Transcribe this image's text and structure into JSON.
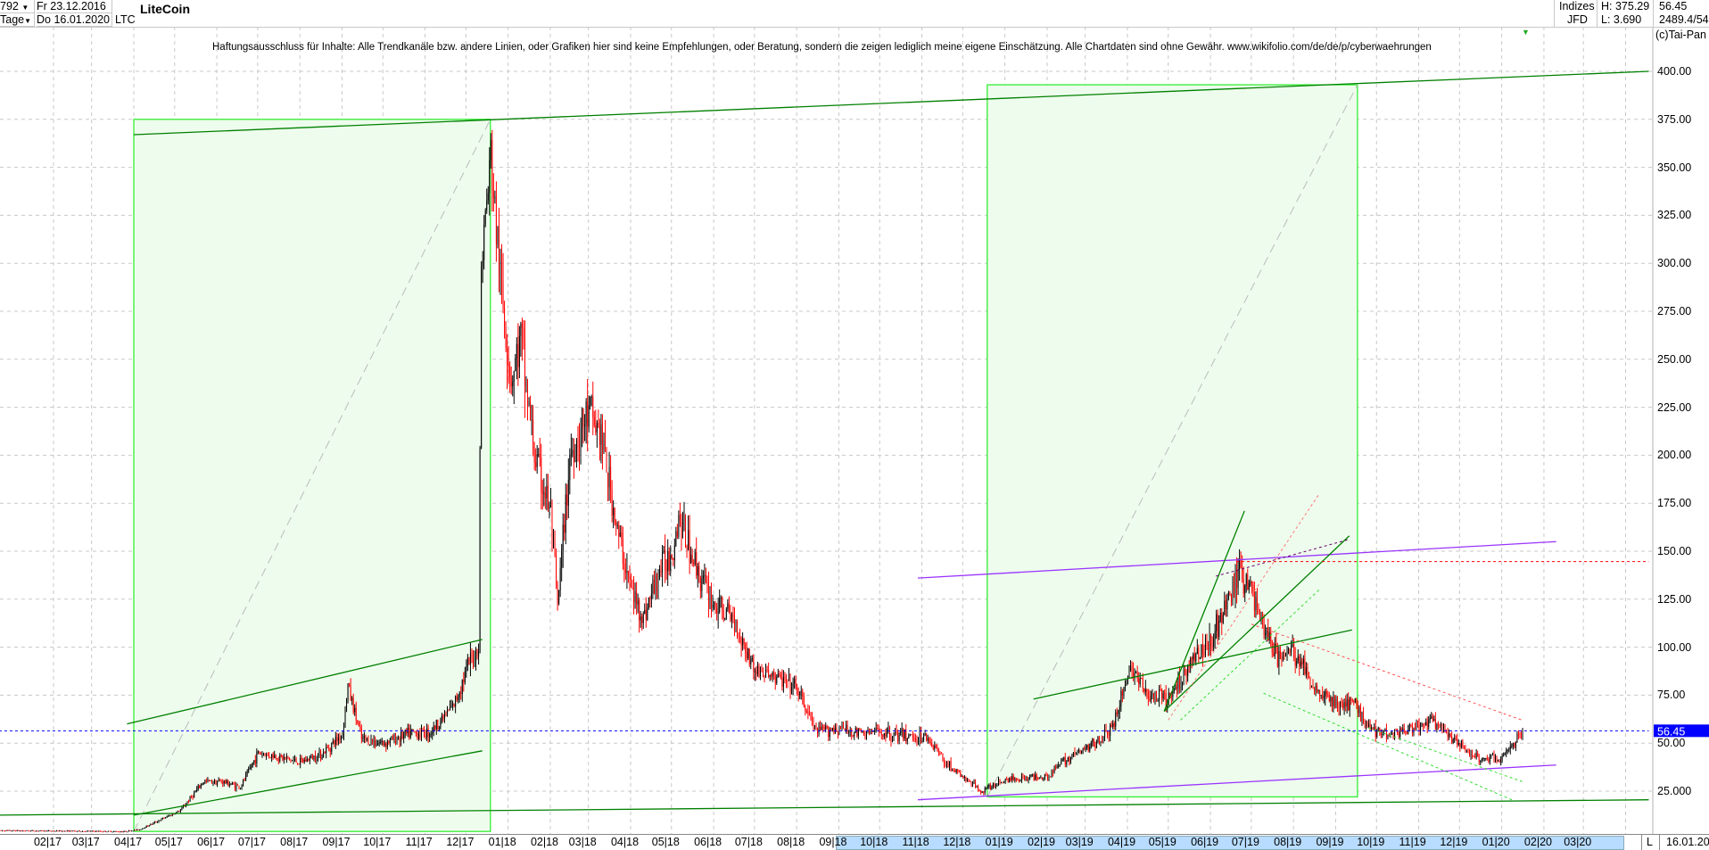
{
  "header": {
    "bar_count": "792",
    "period": "Tage",
    "start_date": "Fr 23.12.2016",
    "end_date": "Do 16.01.2020",
    "symbol": "LTC",
    "title": "LiteCoin",
    "category": "Indizes",
    "source": "JFD",
    "high": "H: 375.29",
    "low": "L: 3.690",
    "last": "56.45",
    "extra": "2489.4/54",
    "copyright": "(c)Tai-Pan"
  },
  "disclaimer": "Haftungsausschluss für Inhalte: Alle Trendkanäle bzw. andere Linien, oder Grafiken hier sind keine Empfehlungen, oder Beratung, sondern die zeigen lediglich meine eigene Einschätzung. Alle Chartdaten sind ohne Gewähr.  www.wikifolio.com/de/de/p/cyberwaehrungen",
  "footer": {
    "scale_mode": "L",
    "last_date": "16.01.20"
  },
  "colors": {
    "up": "#000000",
    "down": "#ff0000",
    "box_fill": "#eefced",
    "box_border": "#33ee33",
    "trend": "#008000",
    "purple": "#9933ff",
    "price_marker": "#0000ff"
  },
  "chart_data": {
    "type": "candlestick",
    "title": "LiteCoin",
    "ylim": [
      0,
      410
    ],
    "y_ticks": [
      "25.000",
      "50.00",
      "75.00",
      "100.00",
      "125.00",
      "150.00",
      "175.00",
      "200.00",
      "225.00",
      "250.00",
      "275.00",
      "300.00",
      "325.00",
      "350.00",
      "375.00",
      "400.00"
    ],
    "x_ticks": [
      "02|17",
      "03|17",
      "04|17",
      "05|17",
      "06|17",
      "07|17",
      "08|17",
      "09|17",
      "10|17",
      "11|17",
      "12|17",
      "01|18",
      "02|18",
      "03|18",
      "04|18",
      "05|18",
      "06|18",
      "07|18",
      "08|18",
      "09|18",
      "10|18",
      "11|18",
      "12|18",
      "01|19",
      "02|19",
      "03|19",
      "04|19",
      "05|19",
      "06|19",
      "07|19",
      "08|19",
      "09|19",
      "10|19",
      "11|19",
      "12|19",
      "01|20",
      "02|20",
      "03|20"
    ],
    "current_price": "56.45",
    "close_path": [
      [
        "2016-12-23",
        4.5
      ],
      [
        "2017-03-25",
        4
      ],
      [
        "2017-04-05",
        5
      ],
      [
        "2017-04-20",
        10
      ],
      [
        "2017-05-05",
        15
      ],
      [
        "2017-05-22",
        30
      ],
      [
        "2017-06-05",
        30
      ],
      [
        "2017-06-18",
        27
      ],
      [
        "2017-07-01",
        45
      ],
      [
        "2017-07-15",
        43
      ],
      [
        "2017-08-01",
        40
      ],
      [
        "2017-08-18",
        45
      ],
      [
        "2017-09-01",
        55
      ],
      [
        "2017-09-05",
        80
      ],
      [
        "2017-09-15",
        52
      ],
      [
        "2017-10-01",
        50
      ],
      [
        "2017-10-20",
        55
      ],
      [
        "2017-11-05",
        56
      ],
      [
        "2017-11-22",
        70
      ],
      [
        "2017-12-02",
        90
      ],
      [
        "2017-12-10",
        100
      ],
      [
        "2017-12-12",
        300
      ],
      [
        "2017-12-19",
        355
      ],
      [
        "2017-12-26",
        290
      ],
      [
        "2018-01-03",
        240
      ],
      [
        "2018-01-10",
        260
      ],
      [
        "2018-01-20",
        200
      ],
      [
        "2018-02-01",
        170
      ],
      [
        "2018-02-06",
        120
      ],
      [
        "2018-02-15",
        200
      ],
      [
        "2018-03-01",
        222
      ],
      [
        "2018-03-10",
        210
      ],
      [
        "2018-03-22",
        160
      ],
      [
        "2018-04-01",
        130
      ],
      [
        "2018-04-10",
        115
      ],
      [
        "2018-04-22",
        140
      ],
      [
        "2018-05-01",
        150
      ],
      [
        "2018-05-06",
        168
      ],
      [
        "2018-05-20",
        140
      ],
      [
        "2018-06-01",
        122
      ],
      [
        "2018-06-15",
        115
      ],
      [
        "2018-07-01",
        88
      ],
      [
        "2018-07-15",
        85
      ],
      [
        "2018-08-01",
        78
      ],
      [
        "2018-08-15",
        56
      ],
      [
        "2018-09-01",
        58
      ],
      [
        "2018-09-15",
        55
      ],
      [
        "2018-10-01",
        56
      ],
      [
        "2018-10-15",
        54
      ],
      [
        "2018-11-05",
        53
      ],
      [
        "2018-11-18",
        40
      ],
      [
        "2018-12-01",
        32
      ],
      [
        "2018-12-15",
        25
      ],
      [
        "2019-01-01",
        31
      ],
      [
        "2019-01-15",
        32
      ],
      [
        "2019-02-01",
        33
      ],
      [
        "2019-02-15",
        42
      ],
      [
        "2019-03-01",
        47
      ],
      [
        "2019-03-20",
        57
      ],
      [
        "2019-04-03",
        90
      ],
      [
        "2019-04-15",
        75
      ],
      [
        "2019-05-01",
        72
      ],
      [
        "2019-05-15",
        90
      ],
      [
        "2019-06-01",
        105
      ],
      [
        "2019-06-15",
        125
      ],
      [
        "2019-06-22",
        140
      ],
      [
        "2019-07-01",
        130
      ],
      [
        "2019-07-10",
        110
      ],
      [
        "2019-07-20",
        95
      ],
      [
        "2019-08-01",
        98
      ],
      [
        "2019-08-15",
        80
      ],
      [
        "2019-09-01",
        70
      ],
      [
        "2019-09-15",
        70
      ],
      [
        "2019-09-25",
        58
      ],
      [
        "2019-10-10",
        55
      ],
      [
        "2019-11-01",
        58
      ],
      [
        "2019-11-10",
        62
      ],
      [
        "2019-11-25",
        52
      ],
      [
        "2019-12-15",
        42
      ],
      [
        "2020-01-01",
        42
      ],
      [
        "2020-01-10",
        50
      ],
      [
        "2020-01-16",
        56.45
      ]
    ],
    "boxes": [
      {
        "from": "2017-04-01",
        "to": "2017-12-19",
        "low": 4,
        "high": 375
      },
      {
        "from": "2018-12-19",
        "to": "2019-09-17",
        "low": 22,
        "high": 393
      }
    ],
    "trendlines": [
      {
        "from": [
          "2016-12-23",
          12.5
        ],
        "to": [
          "2020-04-18",
          20.5
        ],
        "color": "trend"
      },
      {
        "from": [
          "2017-04-01",
          367
        ],
        "to": [
          "2020-04-18",
          400
        ],
        "color": "trend"
      },
      {
        "from": [
          "2017-03-27",
          60
        ],
        "to": [
          "2017-12-13",
          104
        ],
        "color": "trend"
      },
      {
        "from": [
          "2017-04-01",
          12.5
        ],
        "to": [
          "2017-12-13",
          46
        ],
        "color": "trend"
      },
      {
        "from": [
          "2018-10-29",
          136
        ],
        "to": [
          "2020-02-10",
          155
        ],
        "color": "purple"
      },
      {
        "from": [
          "2018-10-29",
          20.5
        ],
        "to": [
          "2020-02-10",
          38.6
        ],
        "color": "purple"
      },
      {
        "from": [
          "2019-01-22",
          73
        ],
        "to": [
          "2019-09-13",
          109
        ],
        "color": "trend"
      },
      {
        "from": [
          "2019-04-28",
          66.6
        ],
        "to": [
          "2019-09-11",
          158
        ],
        "color": "trend"
      },
      {
        "from": [
          "2019-04-28",
          66.6
        ],
        "to": [
          "2019-06-26",
          171
        ],
        "color": "trend"
      }
    ],
    "horizontal_lines": [
      {
        "price": 144.6,
        "from": "2019-06-20",
        "to": "2020-04-18",
        "color": "down",
        "style": "dotted"
      },
      {
        "price": 56.45,
        "from": "2016-12-23",
        "to": "2020-04-18",
        "color": "price_marker",
        "style": "dotted"
      }
    ]
  }
}
